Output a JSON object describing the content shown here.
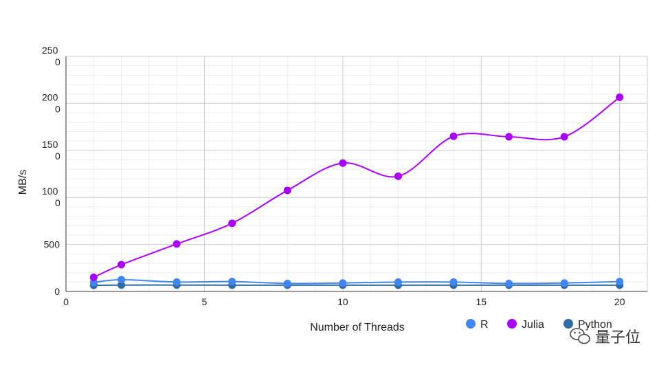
{
  "chart_data": {
    "type": "line",
    "title": "",
    "xlabel": "Number of Threads",
    "ylabel": "MB/s",
    "xlim": [
      0,
      21
    ],
    "ylim": [
      0,
      2500
    ],
    "x_ticks": [
      0,
      5,
      10,
      15,
      20
    ],
    "x_tick_labels": [
      "0",
      "5",
      "10",
      "15",
      "20"
    ],
    "y_ticks": [
      0,
      500,
      1000,
      1500,
      2000,
      2500
    ],
    "y_tick_labels": [
      {
        "line1": "0",
        "line2": ""
      },
      {
        "line1": "500",
        "line2": ""
      },
      {
        "line1": "100",
        "line2": "0"
      },
      {
        "line1": "150",
        "line2": "0"
      },
      {
        "line1": "200",
        "line2": "0"
      },
      {
        "line1": "250",
        "line2": "0"
      }
    ],
    "grid": true,
    "smooth": true,
    "legend_position": "bottom-right",
    "x": [
      1,
      2,
      4,
      6,
      8,
      10,
      12,
      14,
      16,
      18,
      20
    ],
    "series": [
      {
        "name": "R",
        "color": "#4285f4",
        "values": [
          95,
          125,
          100,
          105,
          85,
          90,
          100,
          100,
          85,
          90,
          105
        ]
      },
      {
        "name": "Julia",
        "color": "#aa00ff",
        "values": [
          150,
          285,
          505,
          725,
          1075,
          1365,
          1225,
          1650,
          1645,
          1645,
          2065
        ]
      },
      {
        "name": "Python",
        "color": "#2e6ca4",
        "values": [
          65,
          68,
          68,
          67,
          67,
          67,
          67,
          67,
          67,
          67,
          67
        ]
      }
    ]
  },
  "watermark": {
    "text": "量子位",
    "icon": "wechat-icon"
  }
}
